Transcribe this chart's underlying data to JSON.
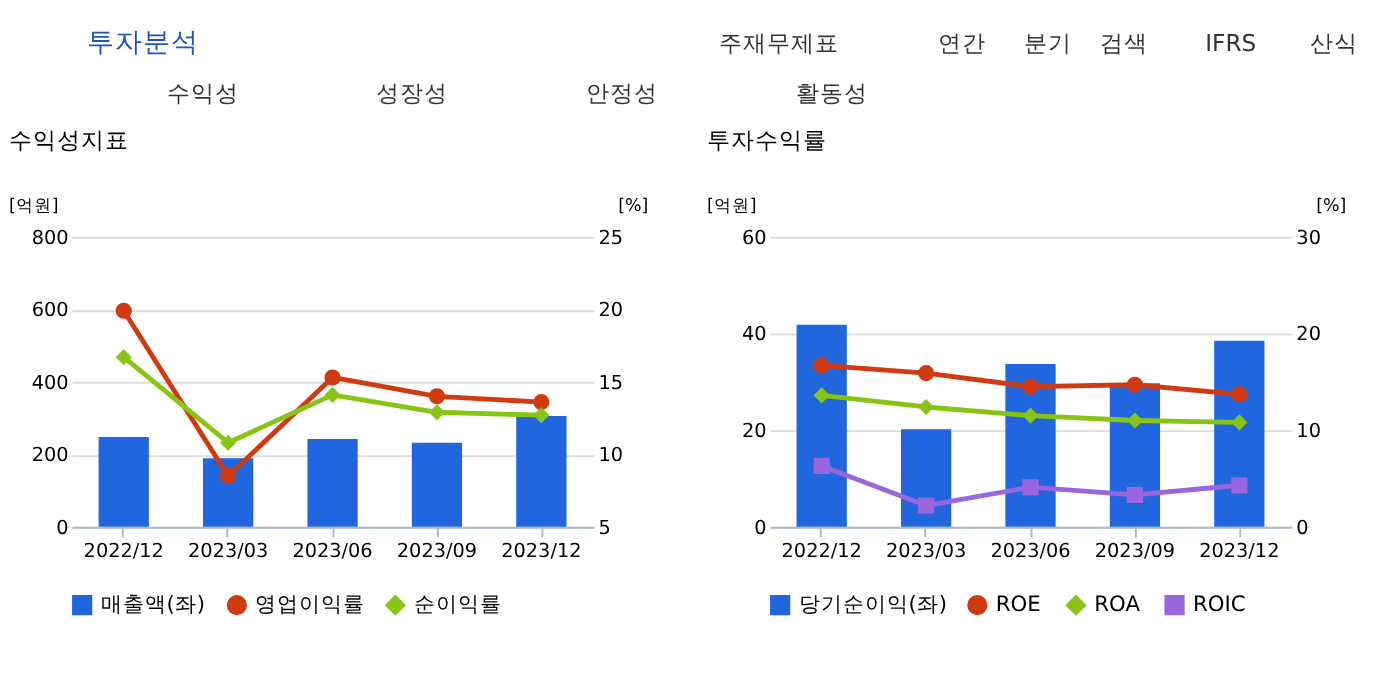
{
  "chart_data": [
    {
      "type": "other",
      "annotations": [
        "투자분석",
        "주재무제표",
        "연간",
        "분기",
        "검색",
        "IFRS",
        "산식",
        "수익성",
        "성장성",
        "안정성",
        "활동성"
      ]
    },
    {
      "type": "bar",
      "title": "수익성지표",
      "ylabel": "[억원]",
      "y2label": "[%]",
      "categories": [
        "2022/12",
        "2023/03",
        "2023/06",
        "2023/09",
        "2023/12"
      ],
      "ylim": [
        0,
        800
      ],
      "yticks": [
        0,
        200,
        400,
        600,
        800
      ],
      "y2lim": [
        5,
        25
      ],
      "y2ticks": [
        5,
        10,
        15,
        20,
        25
      ],
      "grid": "y",
      "legend": "bottom",
      "series": [
        {
          "name": "매출액(좌)",
          "type": "bar",
          "color": "#2266dd",
          "values": [
            248,
            189,
            242,
            232,
            306
          ]
        },
        {
          "name": "영업이익률",
          "type": "line",
          "axis": "y2",
          "marker": "circle",
          "color": "#d03a10",
          "values": [
            19.9,
            8.5,
            15.3,
            14.0,
            13.6
          ]
        },
        {
          "name": "순이익률",
          "type": "line",
          "axis": "y2",
          "marker": "diamond",
          "color": "#88c414",
          "values": [
            16.7,
            10.8,
            14.1,
            12.9,
            12.7
          ]
        }
      ]
    },
    {
      "type": "bar",
      "title": "투자수익률",
      "ylabel": "[억원]",
      "y2label": "[%]",
      "categories": [
        "2022/12",
        "2023/03",
        "2023/06",
        "2023/09",
        "2023/12"
      ],
      "ylim": [
        0,
        60
      ],
      "yticks": [
        0,
        20,
        40,
        60
      ],
      "y2lim": [
        0,
        30
      ],
      "y2ticks": [
        0,
        10,
        20,
        30
      ],
      "grid": "y",
      "legend": "bottom",
      "series": [
        {
          "name": "당기순이익(좌)",
          "type": "bar",
          "color": "#2266dd",
          "values": [
            41.8,
            20.2,
            33.7,
            29.7,
            38.5
          ]
        },
        {
          "name": "ROE",
          "type": "line",
          "axis": "y2",
          "marker": "circle",
          "color": "#d03a10",
          "values": [
            16.7,
            15.9,
            14.5,
            14.7,
            13.7
          ]
        },
        {
          "name": "ROA",
          "type": "line",
          "axis": "y2",
          "marker": "diamond",
          "color": "#88c414",
          "values": [
            13.6,
            12.4,
            11.5,
            11.0,
            10.8
          ]
        },
        {
          "name": "ROIC",
          "type": "line",
          "axis": "y2",
          "marker": "square",
          "color": "#9966dd",
          "values": [
            6.3,
            2.2,
            4.1,
            3.3,
            4.3
          ]
        }
      ]
    }
  ]
}
